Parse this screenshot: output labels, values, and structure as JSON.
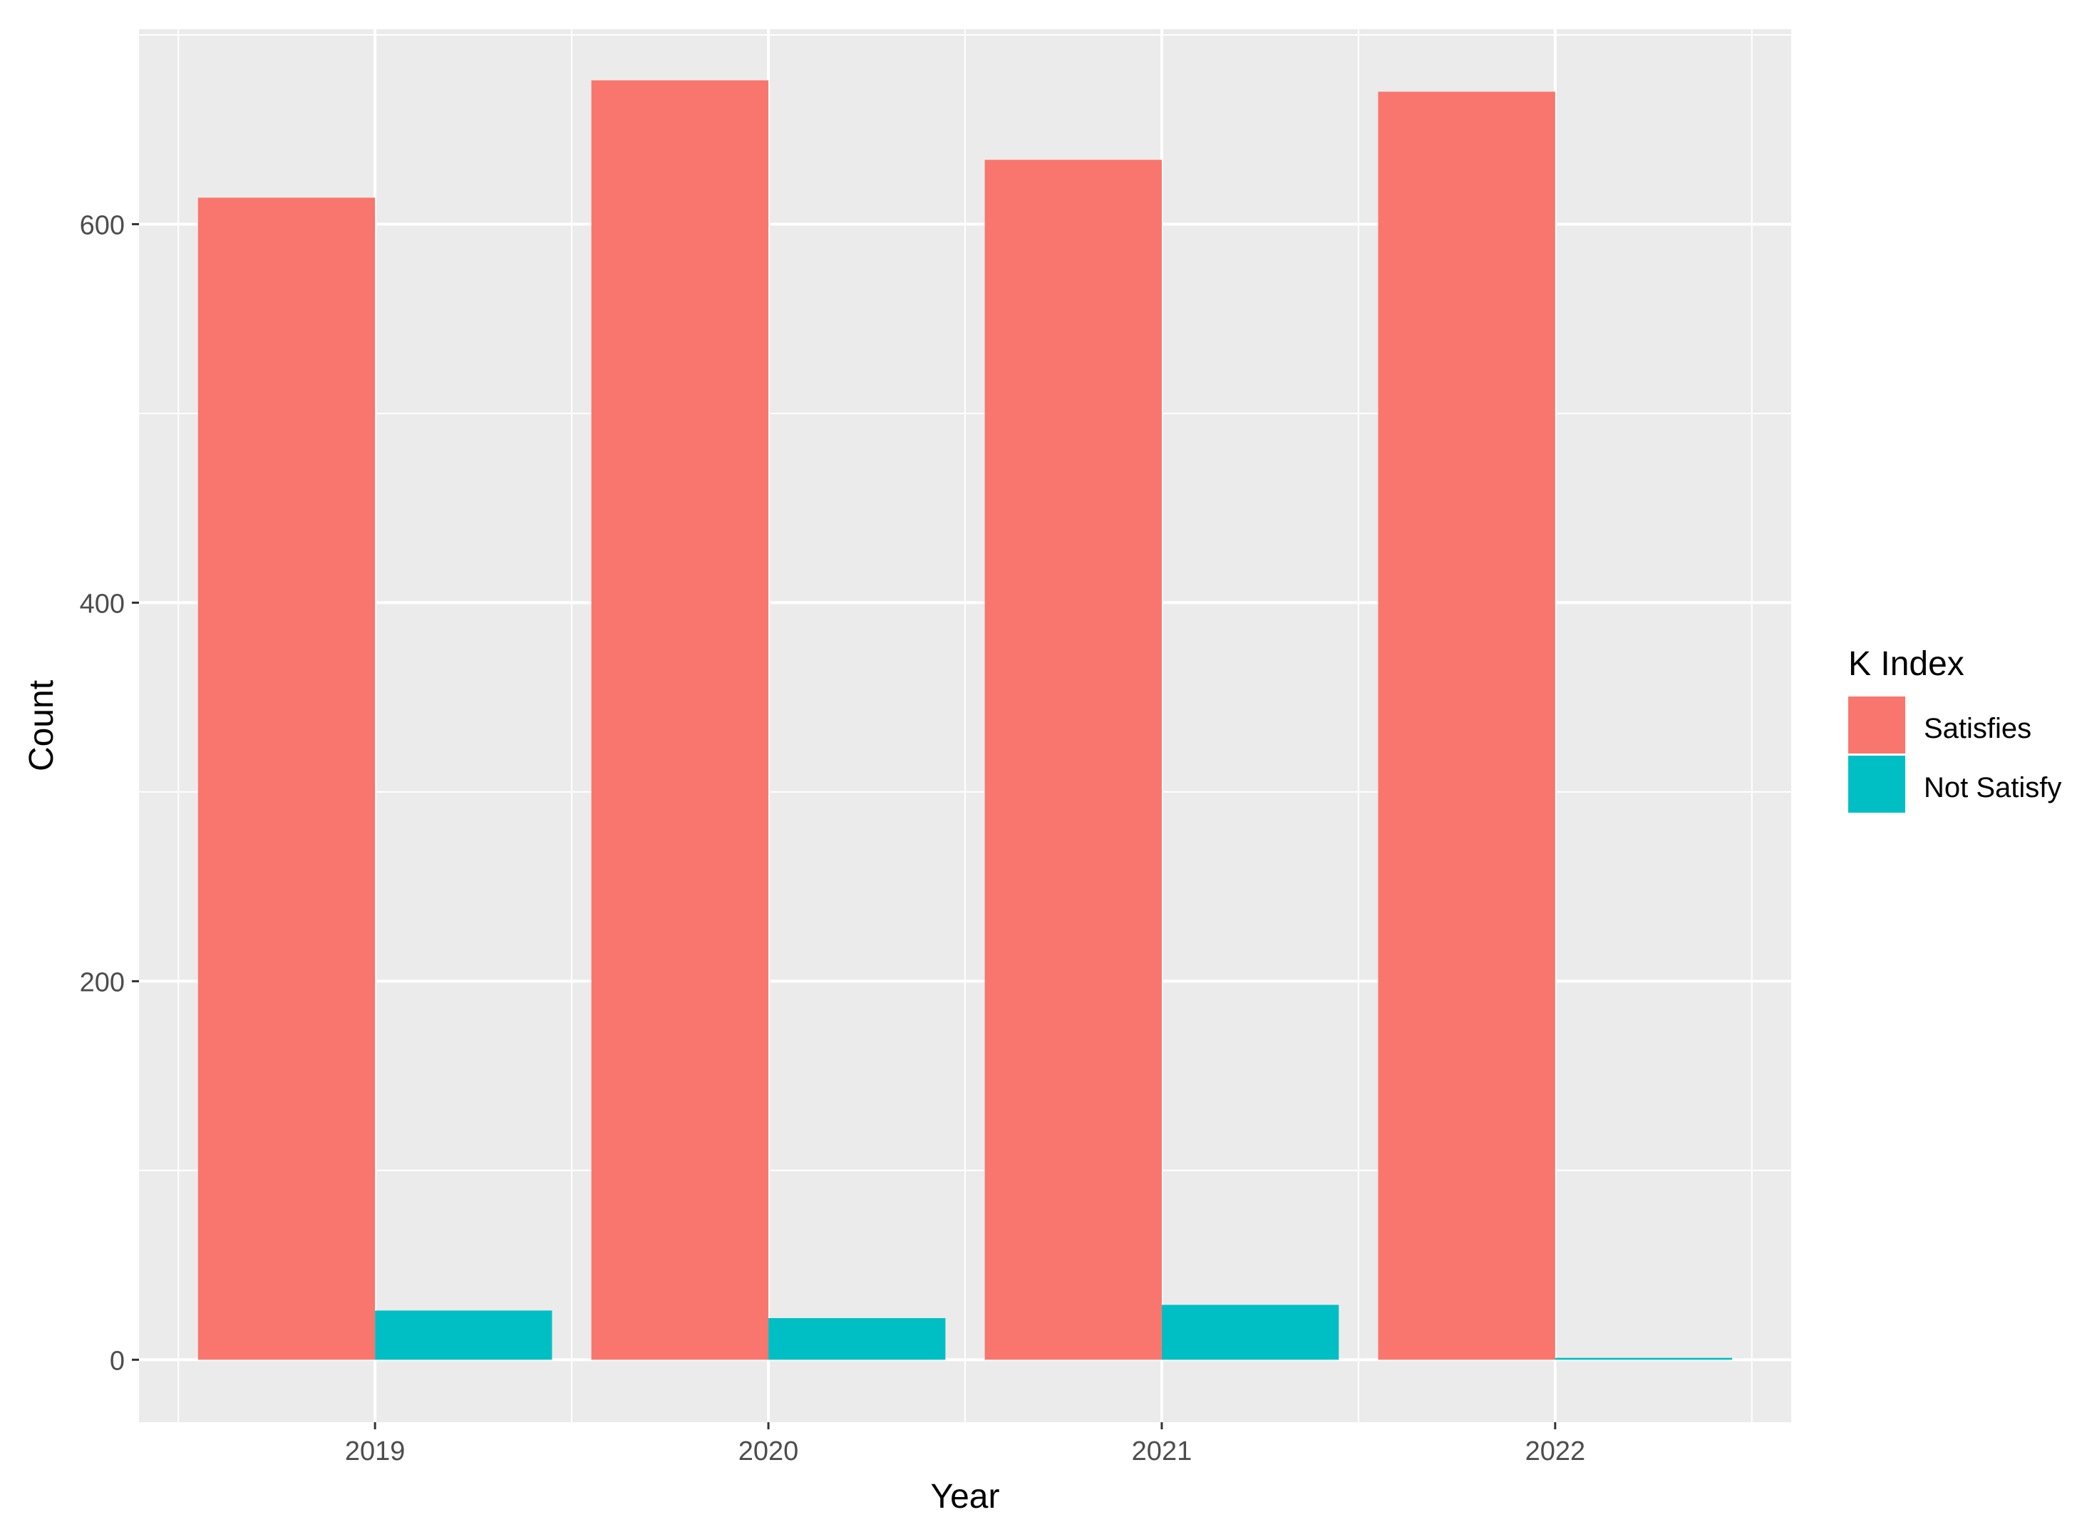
{
  "chart_data": {
    "type": "bar",
    "xlabel": "Year",
    "ylabel": "Count",
    "categories": [
      "2019",
      "2020",
      "2021",
      "2022"
    ],
    "series": [
      {
        "name": "Satisfies",
        "values": [
          614,
          676,
          634,
          670
        ],
        "color": "#F8766D"
      },
      {
        "name": "Not Satisfy",
        "values": [
          26,
          22,
          29,
          1
        ],
        "color": "#00BFC4"
      }
    ],
    "ylim": [
      -33,
      703
    ],
    "yticks": [
      0,
      200,
      400,
      600
    ],
    "ytick_labels": [
      "0",
      "200",
      "400",
      "600"
    ],
    "grid": true,
    "panel_background": "#EBEBEB",
    "legend": {
      "title": "K Index",
      "position": "right"
    }
  }
}
